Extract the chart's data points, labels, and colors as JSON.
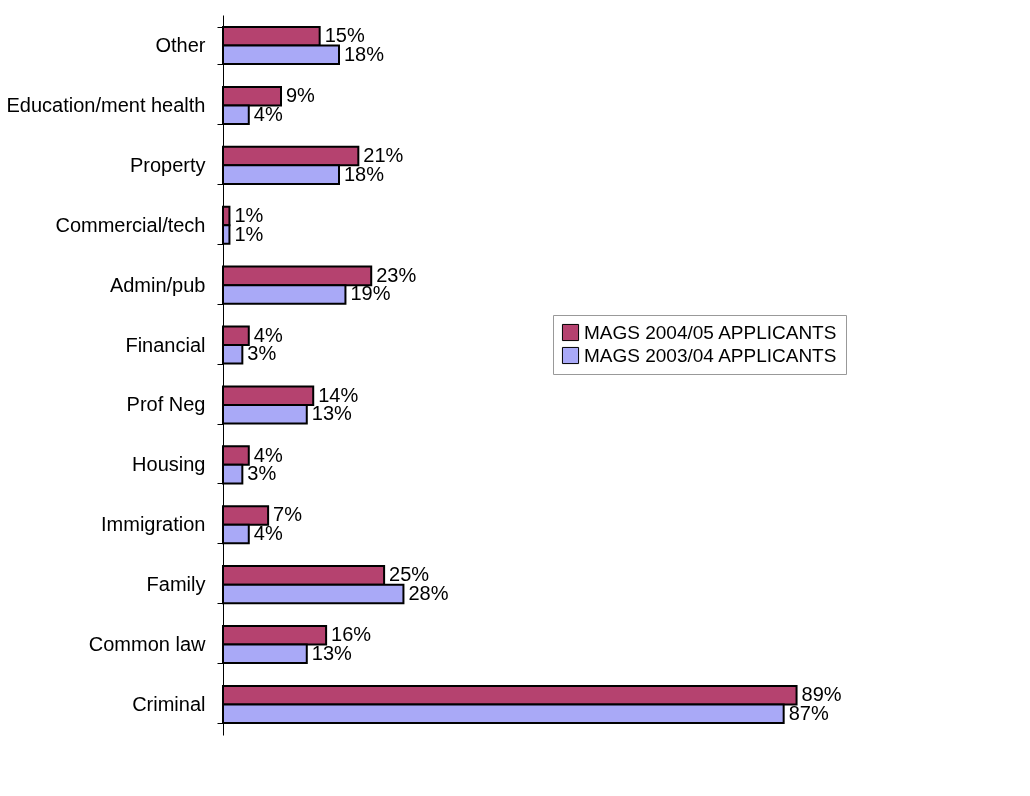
{
  "chart_data": {
    "type": "bar",
    "orientation": "horizontal",
    "categories": [
      "Other",
      "Education/ment health",
      "Property",
      "Commercial/tech",
      "Admin/pub",
      "Financial",
      "Prof Neg",
      "Housing",
      "Immigration",
      "Family",
      "Common law",
      "Criminal"
    ],
    "series": [
      {
        "name": "MAGS 2004/05 APPLICANTS",
        "color": "#b5426f",
        "values": [
          15,
          9,
          21,
          1,
          23,
          4,
          14,
          4,
          7,
          25,
          16,
          89
        ],
        "value_labels": [
          "15%",
          "9%",
          "21%",
          "1%",
          "23%",
          "4%",
          "14%",
          "4%",
          "7%",
          "25%",
          "16%",
          "89%"
        ]
      },
      {
        "name": "MAGS 2003/04 APPLICANTS",
        "color": "#a9a9f7",
        "values": [
          18,
          4,
          18,
          1,
          19,
          3,
          13,
          3,
          4,
          28,
          13,
          87
        ],
        "value_labels": [
          "18%",
          "4%",
          "18%",
          "1%",
          "19%",
          "3%",
          "13%",
          "3%",
          "4%",
          "28%",
          "13%",
          "87%"
        ]
      }
    ],
    "tick_labels": "y",
    "legend": "right"
  }
}
